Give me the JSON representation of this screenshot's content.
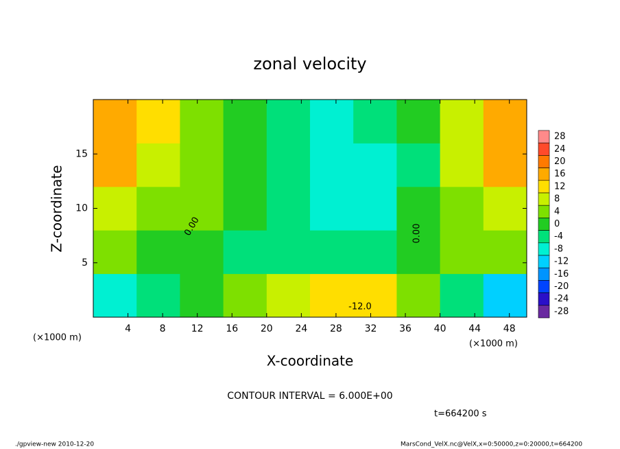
{
  "chart_data": {
    "type": "contour",
    "title": "zonal velocity",
    "x_label": "X-coordinate",
    "y_label": "Z-coordinate",
    "x_unit": "(×1000 m)",
    "y_unit": "(×1000 m)",
    "xlim": [
      0,
      50
    ],
    "ylim": [
      0,
      20
    ],
    "xticks": [
      4,
      8,
      12,
      16,
      20,
      24,
      28,
      32,
      36,
      40,
      44,
      48
    ],
    "yticks": [
      5,
      10,
      15
    ],
    "x": [
      2.5,
      7.5,
      12.5,
      17.5,
      22.5,
      27.5,
      32.5,
      37.5,
      42.5,
      47.5
    ],
    "z": [
      2,
      6,
      10,
      14,
      18
    ],
    "values": [
      [
        -10,
        -4,
        0,
        2,
        6,
        10,
        10,
        4,
        -6,
        -14
      ],
      [
        2,
        0,
        -2,
        -4,
        -4,
        -6,
        -6,
        -2,
        2,
        4
      ],
      [
        6,
        4,
        2,
        -2,
        -6,
        -10,
        -8,
        -2,
        4,
        8
      ],
      [
        15,
        8,
        4,
        0,
        -6,
        -9,
        -9,
        -4,
        6,
        15
      ],
      [
        16,
        10,
        4,
        0,
        -6,
        -8,
        -6,
        -2,
        6,
        16
      ]
    ],
    "colorbar": {
      "levels": [
        28,
        24,
        20,
        16,
        12,
        8,
        4,
        0,
        -4,
        -8,
        -12,
        -16,
        -20,
        -24,
        -28
      ],
      "colors": [
        "#ff8a8a",
        "#ff4a2a",
        "#ff7a00",
        "#ffaa00",
        "#ffde00",
        "#c8f000",
        "#7ee000",
        "#22cc22",
        "#00e07a",
        "#00f0d2",
        "#00d0ff",
        "#0094ff",
        "#0044ff",
        "#2a10c8",
        "#6a2aa0"
      ]
    },
    "contour_labels": [
      "0.00",
      "-12.0",
      "0.00"
    ],
    "contour_interval": "CONTOUR INTERVAL = 6.000E+00",
    "time_label": "t=664200 s",
    "footer_left": "./gpview-new  2010-12-20",
    "footer_right": "MarsCond_VelX.nc@VelX,x=0:50000,z=0:20000,t=664200"
  }
}
